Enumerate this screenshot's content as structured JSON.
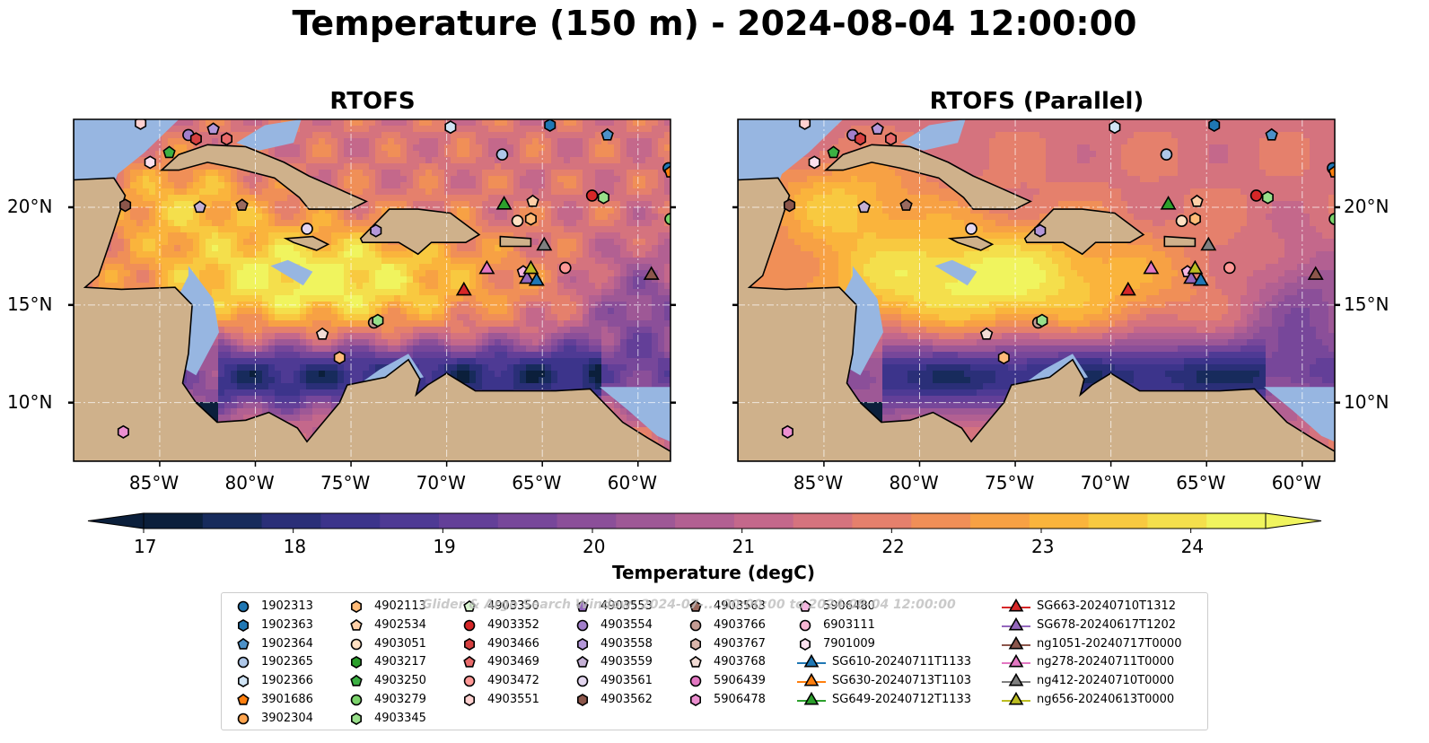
{
  "figure": {
    "title": "Temperature (150 m) - 2024-08-04 12:00:00",
    "panels": [
      {
        "title": "RTOFS"
      },
      {
        "title": "RTOFS (Parallel)"
      }
    ],
    "x_ticks": [
      "85°W",
      "80°W",
      "75°W",
      "70°W",
      "65°W",
      "60°W"
    ],
    "y_ticks": [
      "20°N",
      "15°N",
      "10°N"
    ],
    "map_extent": {
      "lon_min": -89.5,
      "lon_max": -58.3,
      "lat_min": 7.0,
      "lat_max": 24.5
    },
    "colorbar": {
      "label": "Temperature (degC)",
      "ticks": [
        "17",
        "18",
        "19",
        "20",
        "21",
        "22",
        "23",
        "24"
      ],
      "range": [
        17,
        24.5
      ],
      "colors": [
        "#0b1f3b",
        "#172b5c",
        "#2a2f78",
        "#3c348b",
        "#4e3a94",
        "#633f98",
        "#77479a",
        "#8b4f99",
        "#9e5896",
        "#b26092",
        "#c4688b",
        "#d5737e",
        "#e5806c",
        "#f08f57",
        "#f7a144",
        "#fab43c",
        "#f8c940",
        "#f4df4c",
        "#f0f45e"
      ],
      "extend_low": "#0b1f3b",
      "extend_high": "#f0f45e"
    },
    "watermark": "Glider & Argo Search Window: 2024-07-... 00:00:00 to 2024-08-04 12:00:00"
  },
  "legend": {
    "columns": [
      [
        {
          "label": "1902313",
          "marker": "circle",
          "color": "#1f77b4"
        },
        {
          "label": "1902363",
          "marker": "hexagon",
          "color": "#1f77b4"
        },
        {
          "label": "1902364",
          "marker": "pentagon",
          "color": "#4c91c8"
        },
        {
          "label": "1902365",
          "marker": "circle",
          "color": "#aec7e8"
        },
        {
          "label": "1902366",
          "marker": "hexagon",
          "color": "#d0e4f5"
        },
        {
          "label": "3901686",
          "marker": "pentagon",
          "color": "#ff7f0e"
        },
        {
          "label": "3902304",
          "marker": "circle",
          "color": "#ffa54f"
        }
      ],
      [
        {
          "label": "4902113",
          "marker": "hexagon",
          "color": "#ffbb78"
        },
        {
          "label": "4902534",
          "marker": "pentagon",
          "color": "#ffd0a8"
        },
        {
          "label": "4903051",
          "marker": "circle",
          "color": "#ffe0c2"
        },
        {
          "label": "4903217",
          "marker": "hexagon",
          "color": "#2ca02c"
        },
        {
          "label": "4903250",
          "marker": "pentagon",
          "color": "#3cb043"
        },
        {
          "label": "4903279",
          "marker": "circle",
          "color": "#7bd36b"
        },
        {
          "label": "4903345",
          "marker": "hexagon",
          "color": "#98df8a"
        }
      ],
      [
        {
          "label": "4903350",
          "marker": "pentagon",
          "color": "#d8f5cf"
        },
        {
          "label": "4903352",
          "marker": "circle",
          "color": "#d62728"
        },
        {
          "label": "4903466",
          "marker": "hexagon",
          "color": "#d64040"
        },
        {
          "label": "4903469",
          "marker": "pentagon",
          "color": "#e86a6a"
        },
        {
          "label": "4903472",
          "marker": "circle",
          "color": "#ff9896"
        },
        {
          "label": "4903551",
          "marker": "hexagon",
          "color": "#ffd1d0"
        }
      ],
      [
        {
          "label": "4903553",
          "marker": "pentagon",
          "color": "#9467bd"
        },
        {
          "label": "4903554",
          "marker": "circle",
          "color": "#a27fcb"
        },
        {
          "label": "4903558",
          "marker": "hexagon",
          "color": "#b497d9"
        },
        {
          "label": "4903559",
          "marker": "pentagon",
          "color": "#c5b0d5"
        },
        {
          "label": "4903561",
          "marker": "circle",
          "color": "#e3d6ef"
        },
        {
          "label": "4903562",
          "marker": "hexagon",
          "color": "#8c564b"
        }
      ],
      [
        {
          "label": "4903563",
          "marker": "pentagon",
          "color": "#9a6a5f"
        },
        {
          "label": "4903766",
          "marker": "circle",
          "color": "#c49c94"
        },
        {
          "label": "4903767",
          "marker": "hexagon",
          "color": "#dab5ab"
        },
        {
          "label": "4903768",
          "marker": "pentagon",
          "color": "#f2dcd5"
        },
        {
          "label": "5906439",
          "marker": "circle",
          "color": "#e377c2"
        },
        {
          "label": "5906478",
          "marker": "hexagon",
          "color": "#ec8fd0"
        }
      ],
      [
        {
          "label": "5906480",
          "marker": "pentagon",
          "color": "#f5b6e0"
        },
        {
          "label": "6903111",
          "marker": "circle",
          "color": "#f7b6d2"
        },
        {
          "label": "7901009",
          "marker": "hexagon",
          "color": "#fbe0ee"
        },
        {
          "label": "SG610-20240711T1133",
          "marker": "triangle-line",
          "color": "#1f77b4"
        },
        {
          "label": "SG630-20240713T1103",
          "marker": "triangle-line",
          "color": "#ff7f0e"
        },
        {
          "label": "SG649-20240712T1133",
          "marker": "triangle-line",
          "color": "#2ca02c"
        }
      ],
      [
        {
          "label": "SG663-20240710T1312",
          "marker": "triangle-line",
          "color": "#d62728"
        },
        {
          "label": "SG678-20240617T1202",
          "marker": "triangle-line",
          "color": "#9467bd"
        },
        {
          "label": "ng1051-20240717T0000",
          "marker": "triangle-line",
          "color": "#8c564b"
        },
        {
          "label": "ng278-20240711T0000",
          "marker": "triangle-line",
          "color": "#e377c2"
        },
        {
          "label": "ng412-20240710T0000",
          "marker": "triangle-line",
          "color": "#7f7f7f"
        },
        {
          "label": "ng656-20240613T0000",
          "marker": "triangle-line",
          "color": "#bcbd22"
        }
      ]
    ]
  },
  "markers": [
    {
      "lon": -86.0,
      "lat": 24.3,
      "marker": "hexagon",
      "color": "#ffd1d0"
    },
    {
      "lon": -85.5,
      "lat": 22.3,
      "marker": "hexagon",
      "color": "#fbe0ee"
    },
    {
      "lon": -84.5,
      "lat": 22.8,
      "marker": "pentagon",
      "color": "#3cb043"
    },
    {
      "lon": -83.5,
      "lat": 23.7,
      "marker": "circle",
      "color": "#a27fcb"
    },
    {
      "lon": -83.1,
      "lat": 23.5,
      "marker": "hexagon",
      "color": "#d64040"
    },
    {
      "lon": -82.2,
      "lat": 24.0,
      "marker": "pentagon",
      "color": "#b497d9"
    },
    {
      "lon": -81.5,
      "lat": 23.5,
      "marker": "hexagon",
      "color": "#e86a6a"
    },
    {
      "lon": -86.8,
      "lat": 20.1,
      "marker": "hexagon",
      "color": "#8c564b"
    },
    {
      "lon": -82.9,
      "lat": 20.0,
      "marker": "pentagon",
      "color": "#c5b0d5"
    },
    {
      "lon": -80.7,
      "lat": 20.1,
      "marker": "pentagon",
      "color": "#9a6a5f"
    },
    {
      "lon": -77.3,
      "lat": 18.9,
      "marker": "circle",
      "color": "#e3d6ef"
    },
    {
      "lon": -73.7,
      "lat": 18.8,
      "marker": "hexagon",
      "color": "#b497d9"
    },
    {
      "lon": -69.8,
      "lat": 24.1,
      "marker": "hexagon",
      "color": "#d0e4f5"
    },
    {
      "lon": -67.1,
      "lat": 22.7,
      "marker": "circle",
      "color": "#aec7e8"
    },
    {
      "lon": -64.6,
      "lat": 24.2,
      "marker": "hexagon",
      "color": "#1f77b4"
    },
    {
      "lon": -61.6,
      "lat": 23.7,
      "marker": "pentagon",
      "color": "#4c91c8"
    },
    {
      "lon": -58.4,
      "lat": 22.0,
      "marker": "circle",
      "color": "#1f77b4"
    },
    {
      "lon": -58.3,
      "lat": 21.8,
      "marker": "pentagon",
      "color": "#ff7f0e"
    },
    {
      "lon": -62.4,
      "lat": 20.6,
      "marker": "circle",
      "color": "#d62728"
    },
    {
      "lon": -61.8,
      "lat": 20.5,
      "marker": "hexagon",
      "color": "#98df8a"
    },
    {
      "lon": -65.5,
      "lat": 20.3,
      "marker": "pentagon",
      "color": "#ffd0a8"
    },
    {
      "lon": -66.3,
      "lat": 19.3,
      "marker": "circle",
      "color": "#ffe0c2"
    },
    {
      "lon": -65.6,
      "lat": 19.4,
      "marker": "hexagon",
      "color": "#ffbb78"
    },
    {
      "lon": -58.3,
      "lat": 19.4,
      "marker": "circle",
      "color": "#7bd36b"
    },
    {
      "lon": -63.8,
      "lat": 16.9,
      "marker": "circle",
      "color": "#ff9896"
    },
    {
      "lon": -73.8,
      "lat": 14.1,
      "marker": "circle",
      "color": "#c49c94"
    },
    {
      "lon": -73.6,
      "lat": 14.2,
      "marker": "hexagon",
      "color": "#98df8a"
    },
    {
      "lon": -76.5,
      "lat": 13.5,
      "marker": "pentagon",
      "color": "#f2dcd5"
    },
    {
      "lon": -75.6,
      "lat": 12.3,
      "marker": "hexagon",
      "color": "#ffbb78"
    },
    {
      "lon": -66.0,
      "lat": 16.7,
      "marker": "pentagon",
      "color": "#f5b6e0"
    },
    {
      "lon": -86.9,
      "lat": 8.5,
      "marker": "hexagon",
      "color": "#ec8fd0"
    }
  ],
  "gliders": [
    {
      "lon": -69.1,
      "lat": 15.8,
      "color": "#d62728"
    },
    {
      "lon": -67.9,
      "lat": 16.9,
      "color": "#e377c2"
    },
    {
      "lon": -67.0,
      "lat": 20.2,
      "color": "#2ca02c"
    },
    {
      "lon": -65.8,
      "lat": 16.4,
      "color": "#9467bd"
    },
    {
      "lon": -65.3,
      "lat": 16.3,
      "color": "#1f77b4"
    },
    {
      "lon": -65.6,
      "lat": 16.9,
      "color": "#bcbd22"
    },
    {
      "lon": -64.9,
      "lat": 18.1,
      "color": "#7f7f7f"
    },
    {
      "lon": -59.3,
      "lat": 16.6,
      "color": "#8c564b"
    }
  ]
}
